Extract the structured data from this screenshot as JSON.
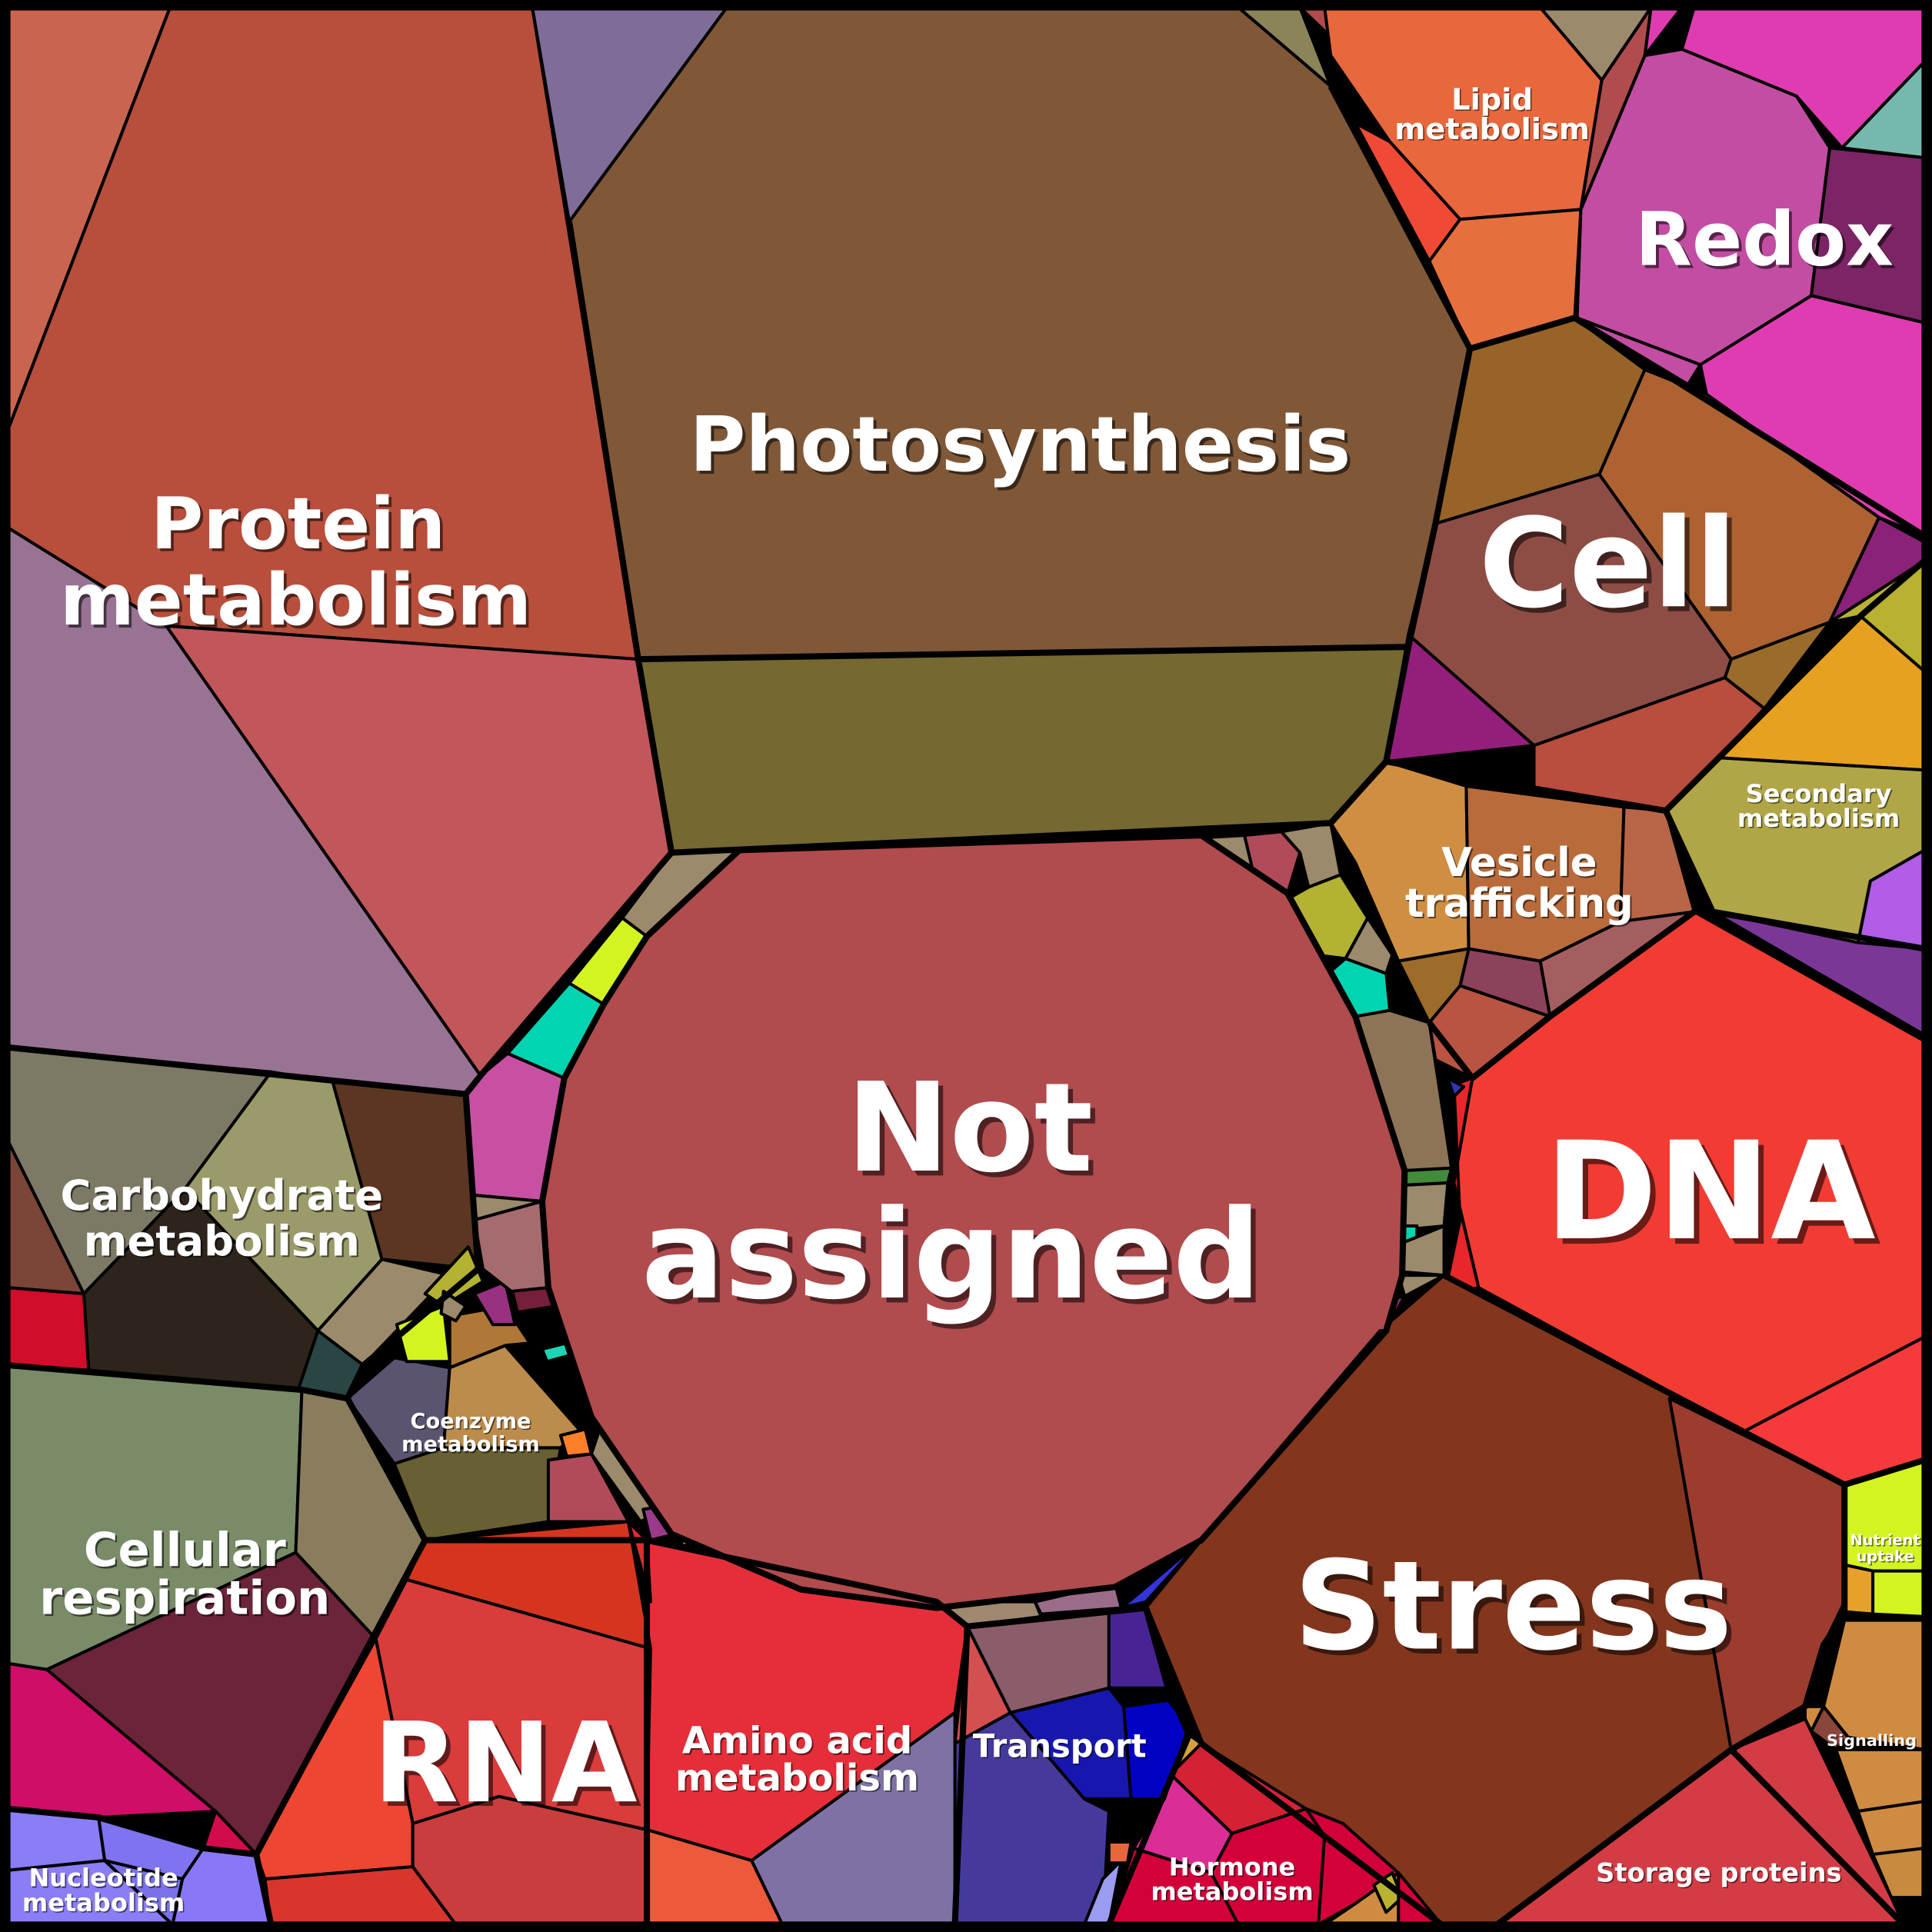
{
  "chart_data": {
    "type": "treemap",
    "subtype": "voronoi",
    "title": "",
    "categories": [
      {
        "name": "Not assigned",
        "color": "#b04b4e",
        "size": "largest"
      },
      {
        "name": "Photosynthesis",
        "color": "#805838"
      },
      {
        "name": "Protein metabolism",
        "color": "#b74f3c"
      },
      {
        "name": "Stress",
        "color": "#83361d"
      },
      {
        "name": "DNA",
        "color": "#f23c33"
      },
      {
        "name": "Cell",
        "color": "#8d4d45"
      },
      {
        "name": "RNA",
        "color": "#da3b3b"
      },
      {
        "name": "Redox",
        "color": "#c34da3"
      },
      {
        "name": "Carbohydrate metabolism",
        "color": "#7c7a65"
      },
      {
        "name": "Cellular respiration",
        "color": "#7a8b68"
      },
      {
        "name": "Amino acid metabolism",
        "color": "#e52e3a"
      },
      {
        "name": "Transport",
        "color": "#1717b0"
      },
      {
        "name": "Lipid metabolism",
        "color": "#e9673c"
      },
      {
        "name": "Vesicle trafficking",
        "color": "#d08e43"
      },
      {
        "name": "Secondary metabolism",
        "color": "#b0a647"
      },
      {
        "name": "Coenzyme metabolism",
        "color": "#686032"
      },
      {
        "name": "Hormone metabolism",
        "color": "#d4003a"
      },
      {
        "name": "Storage proteins",
        "color": "#d43c45"
      },
      {
        "name": "Nucleotide metabolism",
        "color": "#8a7df5"
      },
      {
        "name": "Signalling",
        "color": "#d08b42"
      },
      {
        "name": "Nutrient uptake",
        "color": "#d4f321"
      }
    ]
  },
  "labels": {
    "not_assigned_1": "Not",
    "not_assigned_2": "assigned",
    "photosynthesis": "Photosynthesis",
    "protein_1": "Protein",
    "protein_2": "metabolism",
    "cell": "Cell",
    "redox": "Redox",
    "lipid_1": "Lipid",
    "lipid_2": "metabolism",
    "dna": "DNA",
    "stress": "Stress",
    "rna": "RNA",
    "carb_1": "Carbohydrate",
    "carb_2": "metabolism",
    "resp_1": "Cellular",
    "resp_2": "respiration",
    "amino_1": "Amino acid",
    "amino_2": "metabolism",
    "transport": "Transport",
    "vesicle_1": "Vesicle",
    "vesicle_2": "trafficking",
    "secondary_1": "Secondary",
    "secondary_2": "metabolism",
    "coenzyme_1": "Coenzyme",
    "coenzyme_2": "metabolism",
    "hormone_1": "Hormone",
    "hormone_2": "metabolism",
    "storage": "Storage proteins",
    "nucleotide_1": "Nucleotide",
    "nucleotide_2": "metabolism",
    "signalling": "Signalling",
    "nutrient_1": "Nutrient",
    "nutrient_2": "uptake"
  }
}
